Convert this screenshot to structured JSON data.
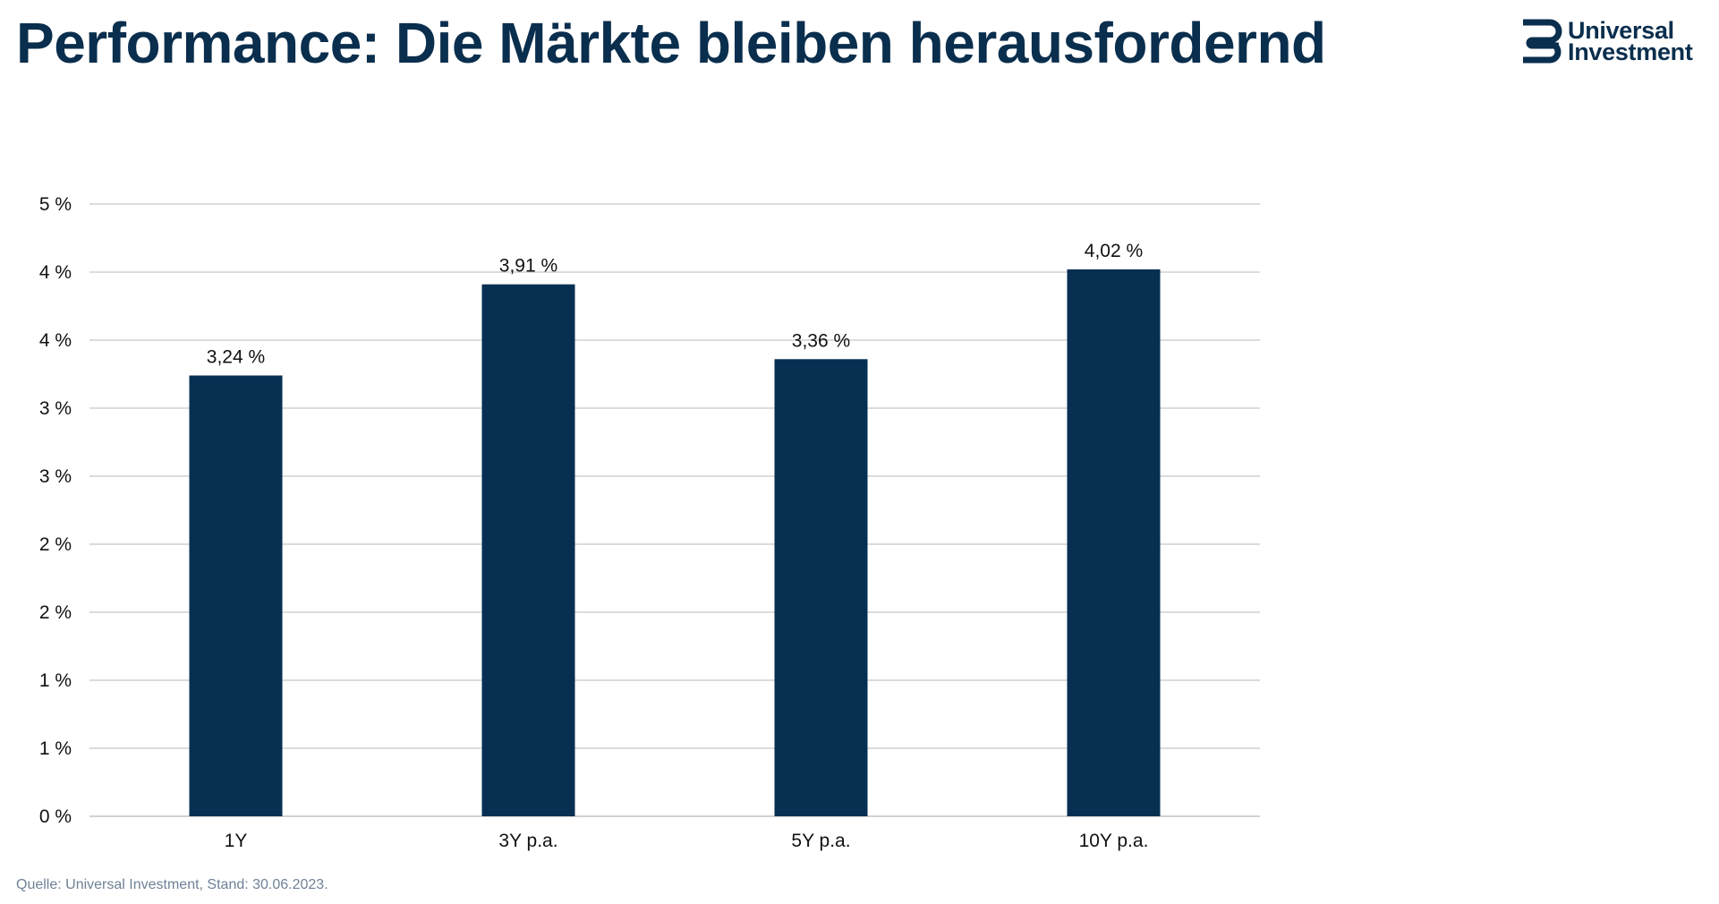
{
  "slide": {
    "title": "Performance: Die Märkte bleiben herausfordernd",
    "source": "Quelle: Universal Investment, Stand: 30.06.2023."
  },
  "logo": {
    "line1": "Universal",
    "line2": "Investment",
    "icon": "universal-investment-logo-icon"
  },
  "colors": {
    "brand": "#0a2e4d",
    "bar": "#062f52",
    "grid": "#d0d0d0",
    "source": "#6f8196"
  },
  "chart_data": {
    "type": "bar",
    "categories": [
      "1Y",
      "3Y p.a.",
      "5Y p.a.",
      "10Y p.a."
    ],
    "values": [
      3.24,
      3.91,
      3.36,
      4.02
    ],
    "data_labels": [
      "3,24 %",
      "3,91 %",
      "3,36 %",
      "4,02 %"
    ],
    "y_ticks": [
      0,
      0.5,
      1,
      1.5,
      2,
      2.5,
      3,
      3.5,
      4,
      4.5
    ],
    "y_tick_labels": [
      "0 %",
      "1 %",
      "1 %",
      "2 %",
      "2 %",
      "3 %",
      "3 %",
      "4 %",
      "4 %",
      "5 %"
    ],
    "ylim": [
      0,
      4.5
    ],
    "grid": true,
    "legend": false,
    "title": "",
    "xlabel": "",
    "ylabel": ""
  }
}
